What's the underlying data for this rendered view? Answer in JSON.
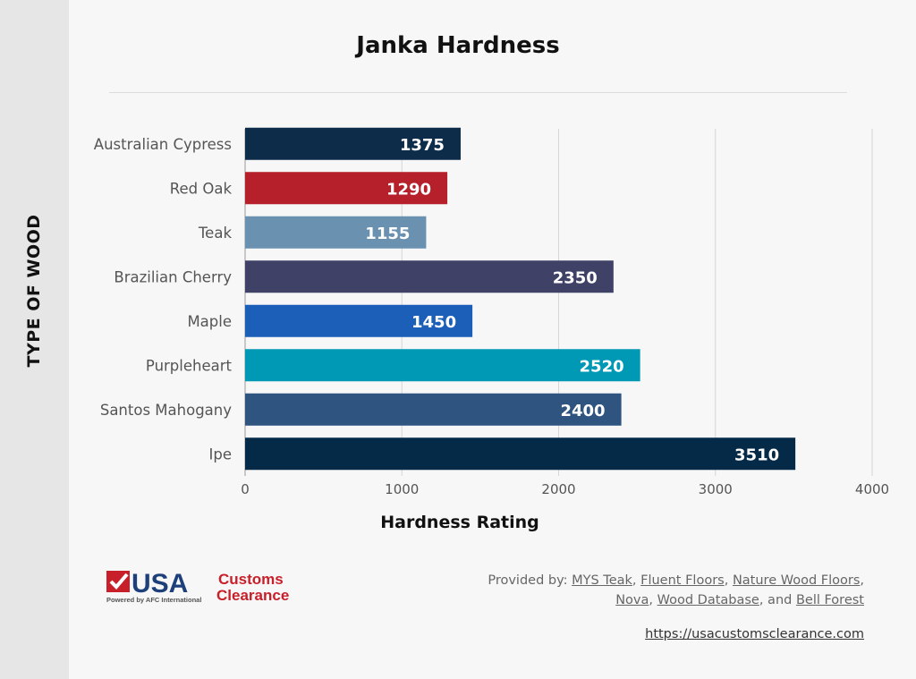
{
  "chart_data": {
    "type": "bar",
    "orientation": "horizontal",
    "title": "Janka Hardness",
    "xlabel": "Hardness Rating",
    "ylabel": "TYPE OF WOOD",
    "categories": [
      "Australian Cypress",
      "Red Oak",
      "Teak",
      "Brazilian Cherry",
      "Maple",
      "Purpleheart",
      "Santos Mahogany",
      "Ipe"
    ],
    "values": [
      1375,
      1290,
      1155,
      2350,
      1450,
      2520,
      2400,
      3510
    ],
    "colors": [
      "#0d2c4a",
      "#b5202a",
      "#6b91b0",
      "#3f4266",
      "#1c5fb8",
      "#0099b5",
      "#2f5480",
      "#042a48"
    ],
    "xlim": [
      0,
      4000
    ],
    "xticks": [
      0,
      1000,
      2000,
      3000,
      4000
    ],
    "grid": true,
    "data_labels": true
  },
  "logo": {
    "text": "USA Customs Clearance",
    "tagline": "Powered by AFC International"
  },
  "credits": {
    "prefix": "Provided by: ",
    "sources": [
      "MYS Teak",
      "Fluent Floors",
      "Nature Wood Floors",
      "Nova",
      "Wood Database",
      "Bell Forest"
    ],
    "sep": ", ",
    "and": ", and "
  },
  "url": "https://usacustomsclearance.com"
}
